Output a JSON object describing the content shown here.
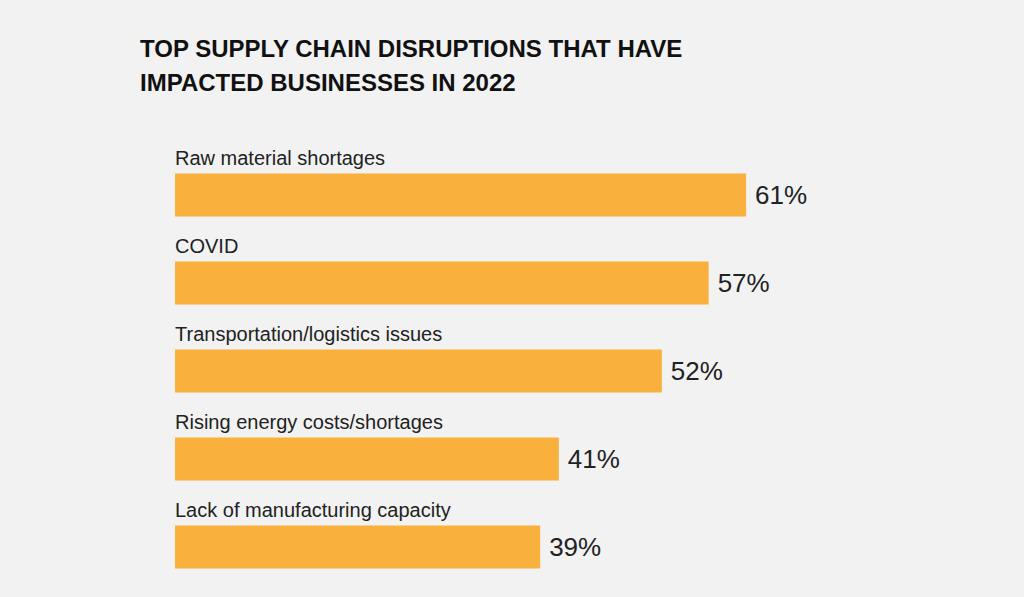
{
  "chart_data": {
    "type": "bar",
    "orientation": "horizontal",
    "title": "TOP SUPPLY CHAIN DISRUPTIONS THAT HAVE IMPACTED BUSINESSES IN 2022",
    "categories": [
      "Raw material shortages",
      "COVID",
      "Transportation/logistics issues",
      "Rising energy costs/shortages",
      "Lack of manufacturing capacity"
    ],
    "values": [
      61,
      57,
      52,
      41,
      39
    ],
    "value_labels": [
      "61%",
      "57%",
      "52%",
      "41%",
      "39%"
    ],
    "color": "#f9b03c",
    "xlim": [
      0,
      80
    ],
    "grid": false,
    "data_labels": true,
    "tick_labels": "y"
  }
}
